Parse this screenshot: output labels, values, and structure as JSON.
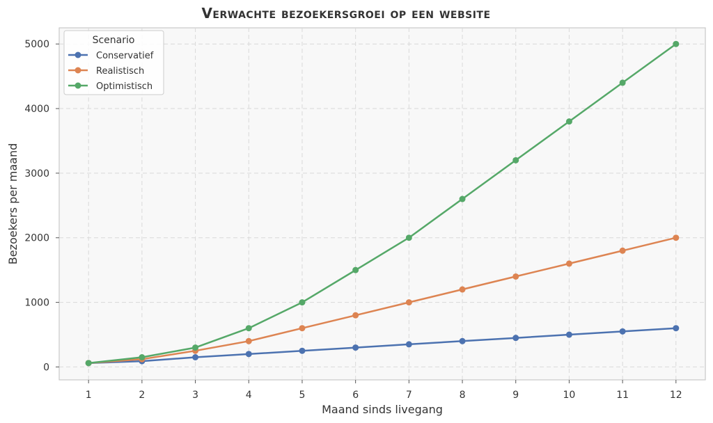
{
  "chart_data": {
    "type": "line",
    "title": "Verwachte bezoekersgroei op een website",
    "xlabel": "Maand sinds livegang",
    "ylabel": "Bezoekers per maand",
    "x": [
      1,
      2,
      3,
      4,
      5,
      6,
      7,
      8,
      9,
      10,
      11,
      12
    ],
    "xlim": [
      0.45,
      12.55
    ],
    "ylim": [
      -200,
      5250
    ],
    "yticks": [
      0,
      1000,
      2000,
      3000,
      4000,
      5000
    ],
    "grid": true,
    "legend": {
      "title": "Scenario",
      "placement": "top-left"
    },
    "series": [
      {
        "name": "Conservatief",
        "color": "#4c72b0",
        "values": [
          60,
          90,
          150,
          200,
          250,
          300,
          350,
          400,
          450,
          500,
          550,
          600
        ]
      },
      {
        "name": "Realistisch",
        "color": "#dd8452",
        "values": [
          60,
          120,
          250,
          400,
          600,
          800,
          1000,
          1200,
          1400,
          1600,
          1800,
          2000
        ]
      },
      {
        "name": "Optimistisch",
        "color": "#55a868",
        "values": [
          60,
          150,
          300,
          600,
          1000,
          1500,
          2000,
          2600,
          3200,
          3800,
          4400,
          5000
        ]
      }
    ]
  }
}
